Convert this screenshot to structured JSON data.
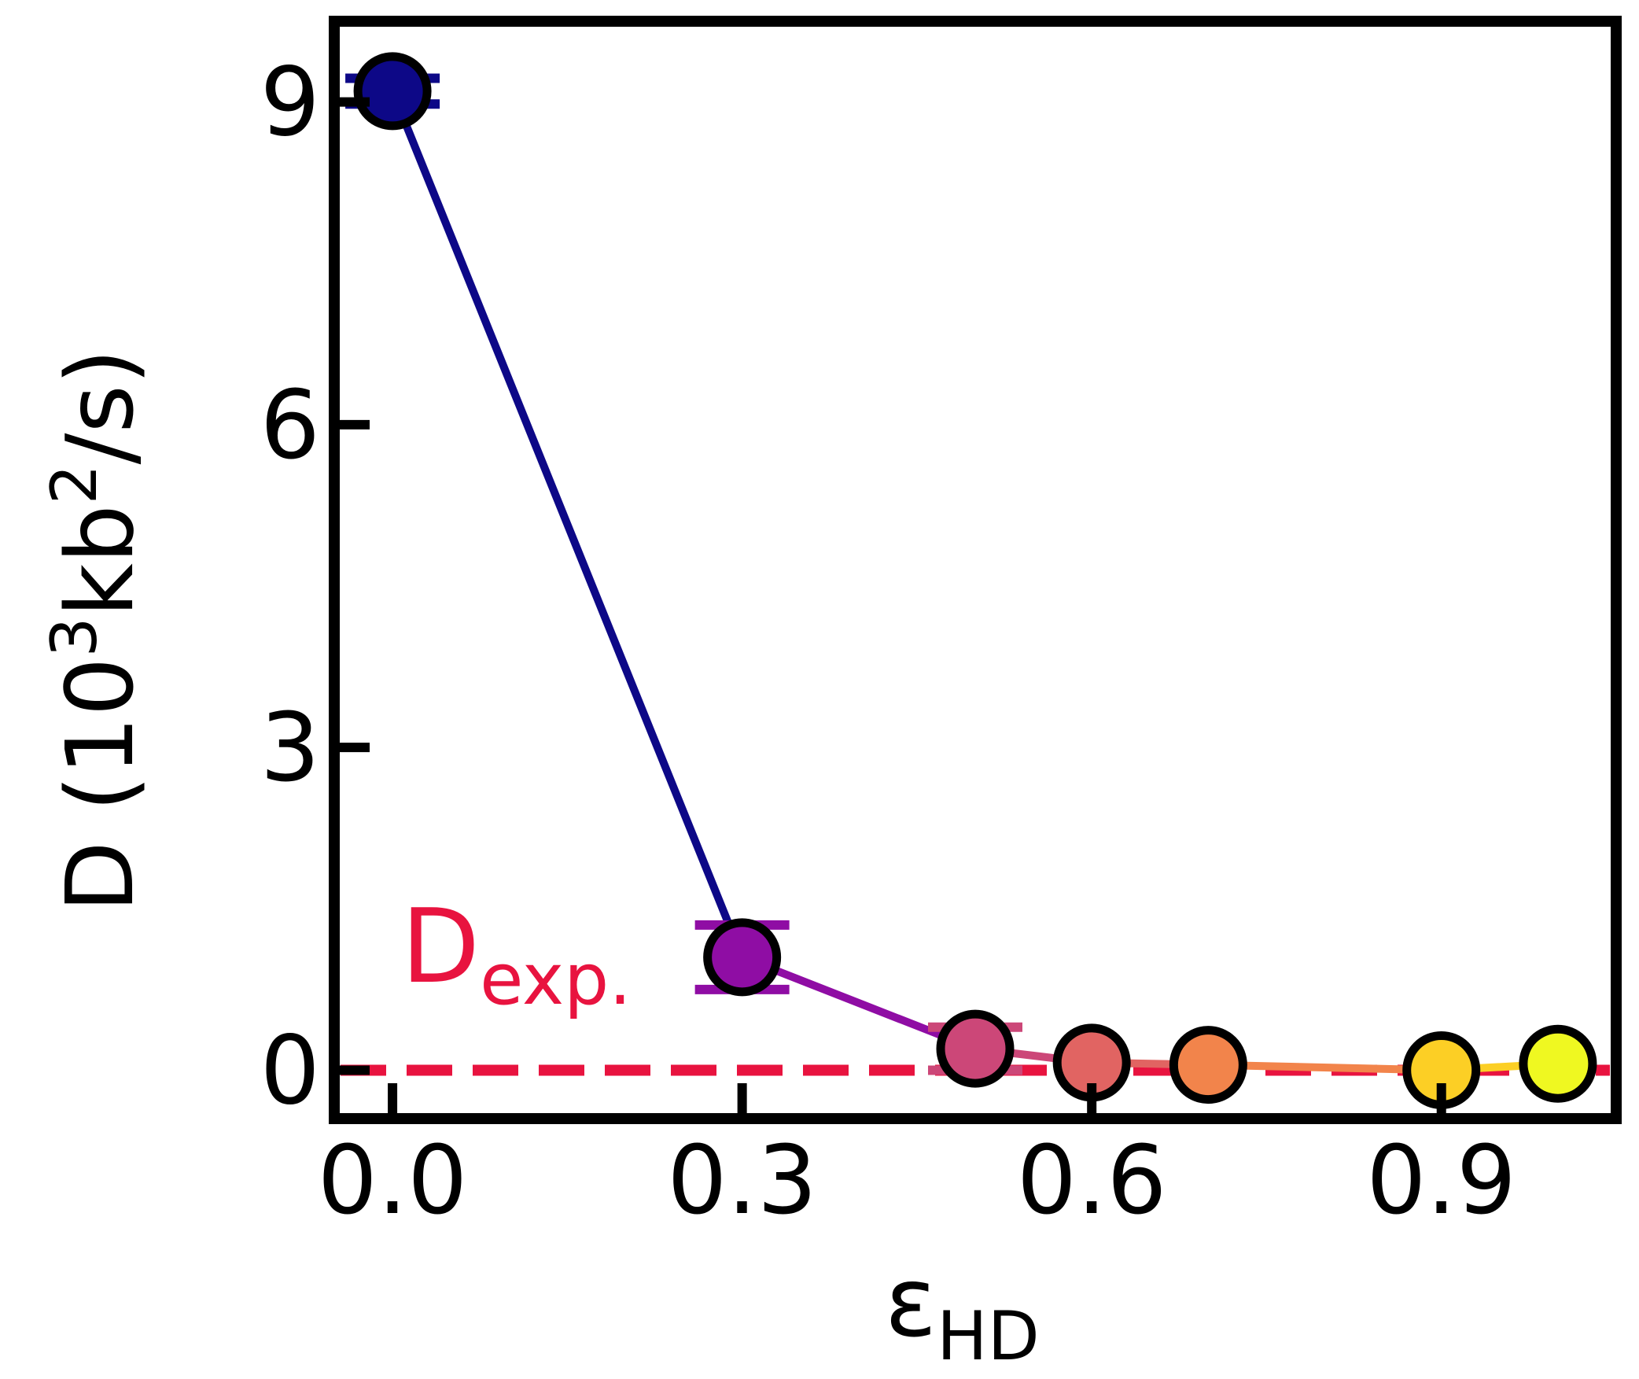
{
  "chart_data": {
    "type": "line",
    "xlabel": "ε",
    "xlabel_sub": "HD",
    "ylabel": "D (10³kb²/s)",
    "ylabel_parts": {
      "a": "D (10",
      "sup1": "3",
      "b": "kb",
      "sup2": "2",
      "c": "/s)"
    },
    "x_ticks": [
      0.0,
      0.3,
      0.6,
      0.9
    ],
    "x_tick_labels": [
      "0.0",
      "0.3",
      "0.6",
      "0.9"
    ],
    "y_ticks": [
      0,
      3,
      6,
      9
    ],
    "y_tick_labels": [
      "0",
      "3",
      "6",
      "9"
    ],
    "xlim": [
      -0.05,
      1.05
    ],
    "ylim": [
      -0.45,
      9.75
    ],
    "grid": false,
    "points": [
      {
        "x": 0.0,
        "y": 9.1,
        "err": 0.12,
        "color": "#0d0887"
      },
      {
        "x": 0.3,
        "y": 1.05,
        "err": 0.3,
        "color": "#8f0da4"
      },
      {
        "x": 0.5,
        "y": 0.2,
        "err": 0.2,
        "color": "#cc4778"
      },
      {
        "x": 0.6,
        "y": 0.07,
        "err": 0.0,
        "color": "#e16462"
      },
      {
        "x": 0.7,
        "y": 0.05,
        "err": 0.0,
        "color": "#f2844b"
      },
      {
        "x": 0.9,
        "y": 0.0,
        "err": 0.0,
        "color": "#fccf25"
      },
      {
        "x": 1.0,
        "y": 0.06,
        "err": 0.0,
        "color": "#eff821"
      }
    ],
    "reference_line": {
      "y": 0.0,
      "label": "D",
      "label_sub": "exp.",
      "color": "#e8133f",
      "style": "dashed"
    }
  }
}
